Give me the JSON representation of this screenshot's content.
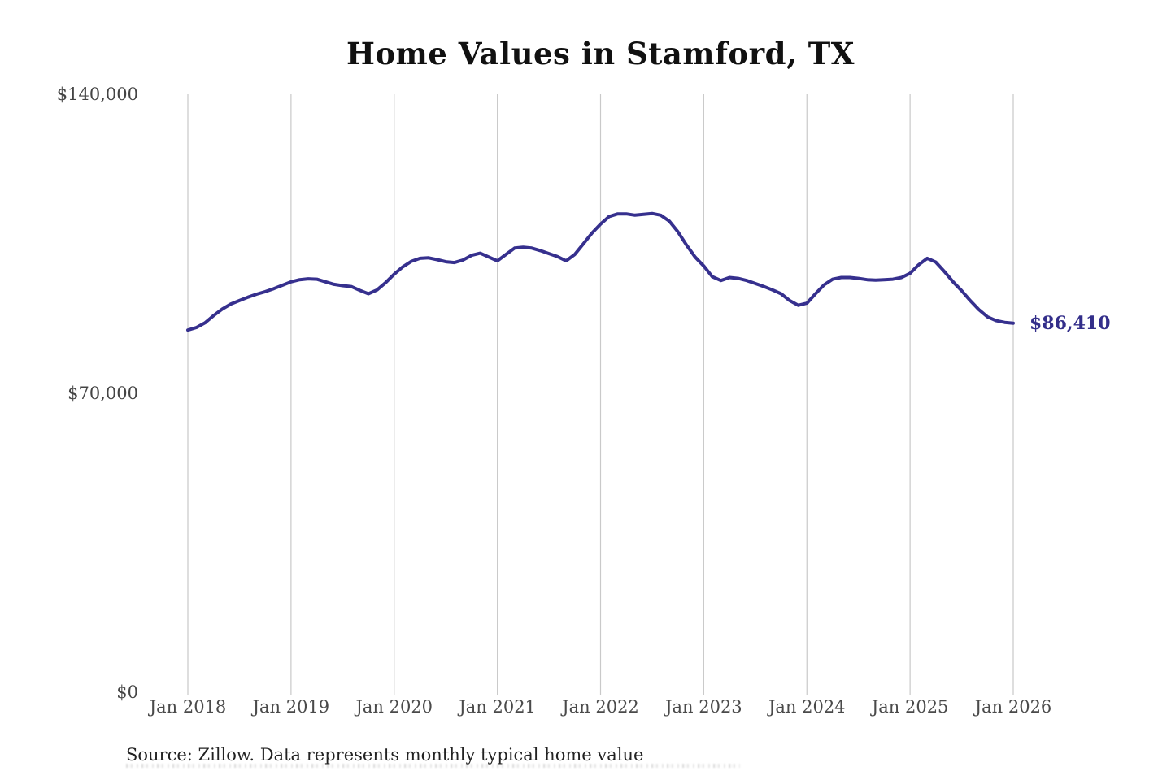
{
  "title": "Home Values in Stamford, TX",
  "end_label": "$86,410",
  "source_note": "Source: Zillow. Data represents monthly typical home value",
  "colors": {
    "line": "#36308e",
    "end_label": "#332e8a",
    "gridline": "#c9c9c9",
    "axis_text": "#444444",
    "title_text": "#111111",
    "source_text": "#222222",
    "background": "#ffffff"
  },
  "chart_data": {
    "type": "line",
    "title": "Home Values in Stamford, TX",
    "x_unit": "month",
    "x_start": "Jan 2018",
    "x_end": "Jan 2026",
    "x_ticks": [
      "Jan 2018",
      "Jan 2019",
      "Jan 2020",
      "Jan 2021",
      "Jan 2022",
      "Jan 2023",
      "Jan 2024",
      "Jan 2025",
      "Jan 2026"
    ],
    "y_ticks": [
      {
        "label": "$0",
        "value": 0
      },
      {
        "label": "$70,000",
        "value": 70000
      },
      {
        "label": "$140,000",
        "value": 140000
      }
    ],
    "ylim": [
      0,
      140000
    ],
    "grid": "vertical",
    "legend": "none",
    "annotation": {
      "text": "$86,410",
      "value": 86410,
      "position": "line-end"
    },
    "series": [
      {
        "name": "Monthly typical home value",
        "values": [
          84800,
          85400,
          86500,
          88200,
          89700,
          90900,
          91700,
          92500,
          93200,
          93800,
          94500,
          95300,
          96100,
          96600,
          96800,
          96700,
          96100,
          95500,
          95200,
          95000,
          94100,
          93300,
          94200,
          95900,
          97900,
          99600,
          100900,
          101600,
          101700,
          101300,
          100800,
          100600,
          101200,
          102300,
          102800,
          101900,
          101000,
          102500,
          104000,
          104200,
          104000,
          103400,
          102700,
          102000,
          101000,
          102500,
          105000,
          107500,
          109600,
          111400,
          112000,
          112000,
          111700,
          111900,
          112100,
          111700,
          110300,
          107800,
          104700,
          101900,
          99800,
          97300,
          96400,
          97100,
          96900,
          96400,
          95700,
          95000,
          94200,
          93300,
          91700,
          90600,
          91100,
          93300,
          95400,
          96700,
          97100,
          97100,
          96900,
          96600,
          96500,
          96600,
          96700,
          97100,
          98100,
          100100,
          101600,
          100700,
          98500,
          96100,
          94000,
          91700,
          89600,
          87900,
          87000,
          86600,
          86410
        ]
      }
    ]
  }
}
